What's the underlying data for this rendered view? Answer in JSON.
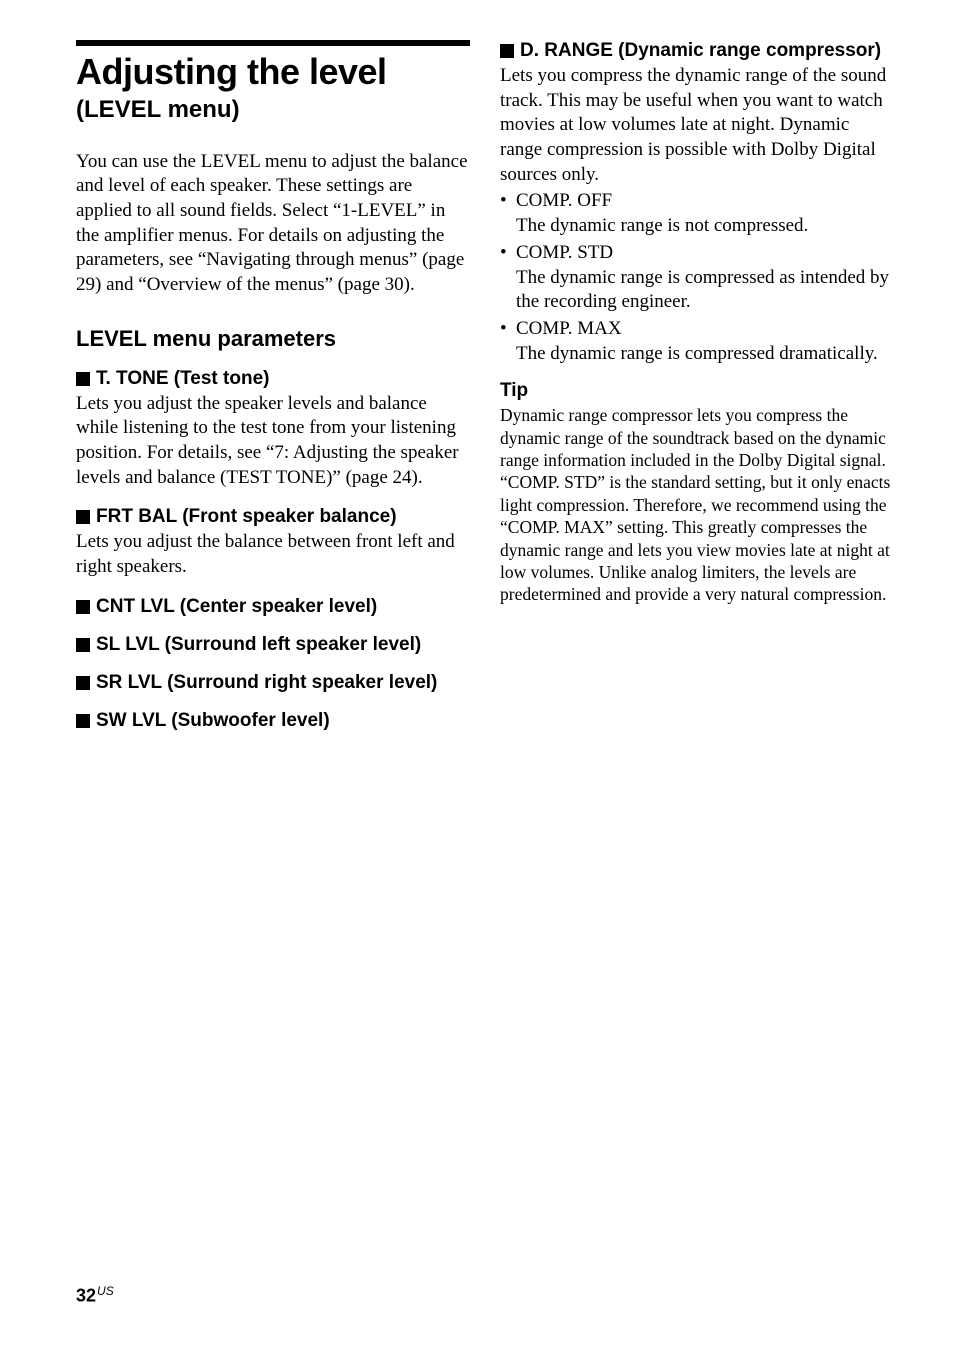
{
  "left": {
    "main_title": "Adjusting the level",
    "sub_title": "(LEVEL menu)",
    "intro": "You can use the LEVEL menu to adjust the balance and level of each speaker. These settings are applied to all sound fields. Select “1-LEVEL” in the amplifier menus. For details on adjusting the parameters, see “Navigating through menus” (page 29) and “Overview of the menus” (page 30).",
    "section_heading": "LEVEL menu parameters",
    "params": {
      "t_tone": {
        "heading": "T. TONE (Test tone)",
        "body": "Lets you adjust the speaker levels and balance while listening to the test tone from your listening position. For details, see “7: Adjusting the speaker levels and balance (TEST TONE)” (page 24)."
      },
      "frt_bal": {
        "heading": "FRT BAL (Front speaker balance)",
        "body": "Lets you adjust the balance between front left and right speakers."
      },
      "cnt_lvl": {
        "heading": "CNT LVL (Center speaker level)"
      },
      "sl_lvl": {
        "heading": "SL LVL (Surround left speaker level)"
      },
      "sr_lvl": {
        "heading": "SR LVL (Surround right speaker level)"
      },
      "sw_lvl": {
        "heading": "SW LVL (Subwoofer level)"
      }
    }
  },
  "right": {
    "d_range": {
      "heading": "D. RANGE (Dynamic range compressor)",
      "body": "Lets you compress the dynamic range of the sound track. This may be useful when you want to watch movies at low volumes late at night. Dynamic range compression is possible with Dolby Digital sources only.",
      "options": [
        {
          "label": "COMP. OFF",
          "desc": "The dynamic range is not compressed."
        },
        {
          "label": "COMP. STD",
          "desc": "The dynamic range is compressed as intended by the recording engineer."
        },
        {
          "label": "COMP. MAX",
          "desc": "The dynamic range is compressed dramatically."
        }
      ]
    },
    "tip": {
      "heading": "Tip",
      "body1": "Dynamic range compressor lets you compress the dynamic range of the soundtrack based on the dynamic range information included in the Dolby Digital signal.",
      "body2": "“COMP. STD” is the standard setting, but it only enacts light compression. Therefore, we recommend using the “COMP. MAX” setting. This greatly compresses the dynamic range and lets you view movies late at night at low volumes. Unlike analog limiters, the levels are predetermined and provide a very natural compression."
    }
  },
  "footer": {
    "page_num": "32",
    "region": "US"
  }
}
